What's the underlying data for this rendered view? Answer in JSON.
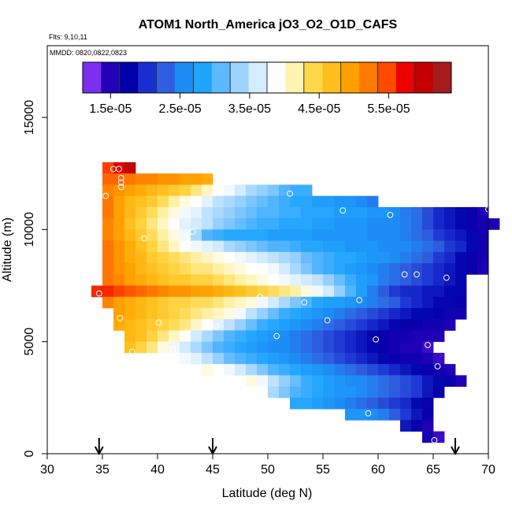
{
  "chart_data": {
    "type": "heatmap",
    "title": "ATOM1 North_America jO3_O2_O1D_CAFS",
    "flights_note": "Flts: 9,10,11",
    "dates_note": "MMDD: 0820,0822,0823",
    "xlabel": "Latitude (deg N)",
    "ylabel": "Altitude (m)",
    "xlim": [
      30,
      70
    ],
    "ylim": [
      0,
      18200
    ],
    "x_ticks": [
      "30",
      "35",
      "40",
      "45",
      "50",
      "55",
      "60",
      "65",
      "70"
    ],
    "y_ticks": [
      "0",
      "5000",
      "10000",
      "15000"
    ],
    "grid": false,
    "colorbar": {
      "placement": "top",
      "range": [
        1.1e-05,
        6.4e-05
      ],
      "tick_labels": [
        "1.5e-05",
        "2.5e-05",
        "3.5e-05",
        "4.5e-05",
        "5.5e-05"
      ],
      "colors": [
        "#7b2ff0",
        "#2200b8",
        "#0000a8",
        "#1a2ed0",
        "#2f5fe0",
        "#1e8cf5",
        "#1fa4ff",
        "#5cb8ff",
        "#9cd3ff",
        "#d4ecff",
        "#ffffff",
        "#fff3b0",
        "#ffd84a",
        "#ffbf1c",
        "#ffa000",
        "#ff7a00",
        "#ff4a00",
        "#ee0000",
        "#c40000",
        "#a61b1b"
      ]
    },
    "latitude_markers": [
      34.7,
      45,
      67
    ],
    "cell_width_deg": 1.0,
    "cell_height_m": 500,
    "rows": [
      {
        "alt": 12750,
        "lat_start": 35,
        "values": [
          5.6e-05,
          5.9e-05,
          6.2e-05
        ]
      },
      {
        "alt": 12250,
        "lat_start": 35,
        "values": [
          5.4e-05,
          5.4e-05,
          5.3e-05,
          5.2e-05,
          5.2e-05,
          5.1e-05,
          5.1e-05,
          5e-05,
          5e-05,
          4.9e-05
        ]
      },
      {
        "alt": 11750,
        "lat_start": 35,
        "values": [
          5.2e-05,
          5.1e-05,
          5e-05,
          4.9e-05,
          4.8e-05,
          4.7e-05,
          4.6e-05,
          4.5e-05,
          4.3e-05,
          4.1e-05,
          3.9e-05,
          3.8e-05,
          3.6e-05,
          3.4e-05,
          3.3e-05,
          3.2e-05,
          3e-05,
          2.9e-05,
          2.9e-05
        ]
      },
      {
        "alt": 11250,
        "lat_start": 35,
        "values": [
          5.3e-05,
          5e-05,
          4.8e-05,
          4.7e-05,
          4.6e-05,
          4.4e-05,
          4.2e-05,
          4e-05,
          3.9e-05,
          3.7e-05,
          3.5e-05,
          3.4e-05,
          3.3e-05,
          3.2e-05,
          3.1e-05,
          3e-05,
          2.9e-05,
          2.8e-05,
          2.8e-05,
          2.7e-05,
          2.7e-05,
          2.6e-05,
          2.6e-05,
          2.5e-05,
          2.4e-05
        ]
      },
      {
        "alt": 10750,
        "lat_start": 35,
        "values": [
          5.3e-05,
          5e-05,
          4.8e-05,
          4.6e-05,
          4.4e-05,
          4.2e-05,
          4e-05,
          3.8e-05,
          3.7e-05,
          3.5e-05,
          3.4e-05,
          3.3e-05,
          3.2e-05,
          3.1e-05,
          3e-05,
          3e-05,
          2.9e-05,
          2.9e-05,
          2.8e-05,
          2.8e-05,
          2.8e-05,
          2.7e-05,
          2.7e-05,
          2.7e-05,
          2.6e-05,
          2.6e-05,
          2.5e-05,
          2.4e-05,
          2.3e-05,
          2.1e-05,
          1.9e-05,
          1.8e-05,
          1.7e-05,
          1.6e-05,
          1.4e-05
        ]
      },
      {
        "alt": 10250,
        "lat_start": 35,
        "values": [
          5.2e-05,
          5e-05,
          4.7e-05,
          4.5e-05,
          4.3e-05,
          4.1e-05,
          3.9e-05,
          3.7e-05,
          3.6e-05,
          3.5e-05,
          3.3e-05,
          3.2e-05,
          3.1e-05,
          3e-05,
          2.9e-05,
          2.9e-05,
          2.8e-05,
          2.8e-05,
          2.8e-05,
          2.7e-05,
          2.7e-05,
          2.6e-05,
          2.6e-05,
          2.6e-05,
          2.5e-05,
          2.5e-05,
          2.5e-05,
          2.4e-05,
          2.3e-05,
          2.1e-05,
          1.9e-05,
          1.8e-05,
          1.7e-05,
          1.6e-05,
          1.5e-05,
          1.4e-05
        ]
      },
      {
        "alt": 9750,
        "lat_start": 35,
        "values": [
          5.2e-05,
          5e-05,
          4.8e-05,
          4.6e-05,
          4.4e-05,
          4.2e-05,
          4e-05,
          3.8e-05,
          3.4e-05,
          3e-05,
          2.9e-05,
          2.8e-05,
          2.8e-05,
          2.8e-05,
          2.8e-05,
          2.7e-05,
          2.7e-05,
          2.7e-05,
          2.7e-05,
          2.6e-05,
          2.6e-05,
          2.6e-05,
          2.6e-05,
          2.6e-05,
          2.5e-05,
          2.5e-05,
          2.5e-05,
          2.4e-05,
          2.3e-05,
          2.2e-05,
          2e-05,
          1.9e-05,
          1.8e-05,
          1.7e-05,
          1.5e-05
        ]
      },
      {
        "alt": 9250,
        "lat_start": 35,
        "values": [
          5.3e-05,
          5.1e-05,
          4.9e-05,
          4.7e-05,
          4.5e-05,
          4.3e-05,
          4.1e-05,
          3.9e-05,
          3.8e-05,
          3.7e-05,
          3.6e-05,
          3.4e-05,
          3.3e-05,
          3.2e-05,
          3.1e-05,
          3e-05,
          3e-05,
          2.9e-05,
          2.8e-05,
          2.8e-05,
          2.7e-05,
          2.7e-05,
          2.6e-05,
          2.6e-05,
          2.6e-05,
          2.5e-05,
          2.5e-05,
          2.5e-05,
          2.4e-05,
          2.3e-05,
          2.2e-05,
          2e-05,
          1.9e-05,
          1.7e-05,
          1.5e-05
        ]
      },
      {
        "alt": 8750,
        "lat_start": 35,
        "values": [
          5.3e-05,
          5.1e-05,
          4.9e-05,
          4.8e-05,
          4.6e-05,
          4.5e-05,
          4.4e-05,
          4.3e-05,
          4.2e-05,
          4.1e-05,
          4e-05,
          3.9e-05,
          3.8e-05,
          3.7e-05,
          3.6e-05,
          3.5e-05,
          3.4e-05,
          3.3e-05,
          3.1e-05,
          3e-05,
          2.9e-05,
          2.8e-05,
          2.8e-05,
          2.7e-05,
          2.6e-05,
          2.6e-05,
          2.5e-05,
          2.4e-05,
          2.3e-05,
          2.2e-05,
          2e-05,
          1.9e-05,
          1.7e-05,
          1.6e-05,
          1.5e-05
        ]
      },
      {
        "alt": 8250,
        "lat_start": 35,
        "values": [
          5.3e-05,
          5.1e-05,
          5e-05,
          4.8e-05,
          4.7e-05,
          4.6e-05,
          4.5e-05,
          4.4e-05,
          4.3e-05,
          4.3e-05,
          4.2e-05,
          4.1e-05,
          4e-05,
          3.9e-05,
          3.9e-05,
          3.8e-05,
          3.6e-05,
          3.4e-05,
          3.2e-05,
          3e-05,
          2.9e-05,
          2.8e-05,
          2.7e-05,
          2.6e-05,
          2.5e-05,
          2.4e-05,
          2.3e-05,
          2.2e-05,
          2.1e-05,
          2e-05,
          1.9e-05,
          1.8e-05,
          1.7e-05,
          1.6e-05,
          1.4e-05
        ]
      },
      {
        "alt": 7750,
        "lat_start": 35,
        "values": [
          5.3e-05,
          5.2e-05,
          5e-05,
          4.9e-05,
          4.8e-05,
          4.7e-05,
          4.6e-05,
          4.6e-05,
          4.5e-05,
          4.5e-05,
          4.4e-05,
          4.3e-05,
          4.2e-05,
          4.1e-05,
          4e-05,
          3.9e-05,
          3.8e-05,
          3.7e-05,
          3.6e-05,
          3.5e-05,
          3.3e-05,
          3.1e-05,
          2.9e-05,
          2.7e-05,
          2.6e-05,
          2.4e-05,
          2.3e-05,
          2.2e-05,
          2.1e-05,
          2e-05,
          1.9e-05,
          1.8e-05,
          1.7e-05
        ]
      },
      {
        "alt": 7250,
        "lat_start": 34,
        "values": [
          5.7e-05,
          5.7e-05,
          5.6e-05,
          5.5e-05,
          5.4e-05,
          5.3e-05,
          5.2e-05,
          5.1e-05,
          5.1e-05,
          5e-05,
          5e-05,
          4.9e-05,
          4.8e-05,
          4.7e-05,
          4.6e-05,
          4.5e-05,
          4.4e-05,
          4.3e-05,
          4.2e-05,
          4e-05,
          3.8e-05,
          3.6e-05,
          3.3e-05,
          3e-05,
          2.7e-05,
          2.4e-05,
          2.2e-05,
          2e-05,
          1.9e-05,
          1.9e-05,
          1.8e-05,
          1.8e-05,
          1.7e-05,
          1.7e-05
        ]
      },
      {
        "alt": 6750,
        "lat_start": 35,
        "values": [
          5.2e-05,
          5e-05,
          4.9e-05,
          4.8e-05,
          4.7e-05,
          4.6e-05,
          4.5e-05,
          4.5e-05,
          4.4e-05,
          4.4e-05,
          4.3e-05,
          4.2e-05,
          4.1e-05,
          4e-05,
          3.8e-05,
          3.6e-05,
          3.4e-05,
          3.2e-05,
          3e-05,
          2.8e-05,
          2.7e-05,
          2.7e-05,
          2.6e-05,
          2.5e-05,
          2.4e-05,
          2.3e-05,
          2.2e-05,
          2e-05,
          1.9e-05,
          1.8e-05,
          1.7e-05,
          1.7e-05,
          1.6e-05
        ]
      },
      {
        "alt": 6250,
        "lat_start": 36,
        "values": [
          5e-05,
          4.9e-05,
          4.8e-05,
          4.7e-05,
          4.6e-05,
          4.5e-05,
          4.4e-05,
          4.3e-05,
          4.2e-05,
          4.1e-05,
          4e-05,
          3.8e-05,
          3.5e-05,
          3.3e-05,
          3.1e-05,
          2.9e-05,
          2.8e-05,
          2.7e-05,
          2.6e-05,
          2.5e-05,
          2.4e-05,
          2.3e-05,
          2.2e-05,
          2.1e-05,
          2e-05,
          1.9e-05,
          1.8e-05,
          1.7e-05,
          1.7e-05,
          1.6e-05,
          1.5e-05,
          1.5e-05
        ]
      },
      {
        "alt": 5750,
        "lat_start": 36,
        "values": [
          4.9e-05,
          4.8e-05,
          4.7e-05,
          4.6e-05,
          4.5e-05,
          4.4e-05,
          4.3e-05,
          4.1e-05,
          3.9e-05,
          3.7e-05,
          3.5e-05,
          3.3e-05,
          3.1e-05,
          2.9e-05,
          2.8e-05,
          2.7e-05,
          2.6e-05,
          2.5e-05,
          2.4e-05,
          2.3e-05,
          2.2e-05,
          2.1e-05,
          2e-05,
          1.9e-05,
          1.8e-05,
          1.7e-05,
          1.6e-05,
          1.6e-05,
          1.5e-05,
          1.5e-05,
          1.4e-05
        ]
      },
      {
        "alt": 5250,
        "lat_start": 37,
        "values": [
          4.8e-05,
          4.7e-05,
          4.5e-05,
          4.3e-05,
          4.1e-05,
          3.9e-05,
          3.6e-05,
          3.4e-05,
          3.2e-05,
          3e-05,
          2.9e-05,
          2.8e-05,
          2.7e-05,
          2.6e-05,
          2.5e-05,
          2.4e-05,
          2.3e-05,
          2.2e-05,
          2.1e-05,
          2e-05,
          1.9e-05,
          1.8e-05,
          1.7e-05,
          1.6e-05,
          1.5e-05,
          1.5e-05,
          1.4e-05,
          1.4e-05,
          1.4e-05
        ]
      },
      {
        "alt": 4750,
        "lat_start": 37,
        "values": [
          4.7e-05,
          4.5e-05,
          4.3e-05,
          4e-05,
          3.8e-05,
          3.6e-05,
          3.4e-05,
          3.2e-05,
          3e-05,
          2.9e-05,
          2.8e-05,
          2.7e-05,
          2.6e-05,
          2.5e-05,
          2.5e-05,
          2.4e-05,
          2.3e-05,
          2.2e-05,
          2.1e-05,
          2e-05,
          1.9e-05,
          1.8e-05,
          1.7e-05,
          1.6e-05,
          1.5e-05,
          1.4e-05,
          1.4e-05,
          1.3e-05
        ]
      },
      {
        "alt": 4250,
        "lat_start": 41,
        "values": [
          3.9e-05,
          3.8e-05,
          3.7e-05,
          3.5e-05,
          3.3e-05,
          3.1e-05,
          3e-05,
          2.9e-05,
          2.8e-05,
          2.7e-05,
          2.6e-05,
          2.5e-05,
          2.4e-05,
          2.3e-05,
          2.2e-05,
          2.1e-05,
          2e-05,
          1.9e-05,
          1.8e-05,
          1.7e-05,
          1.6e-05,
          1.5e-05,
          1.5e-05,
          1.4e-05,
          1.3e-05
        ]
      },
      {
        "alt": 3750,
        "lat_start": 44,
        "values": [
          4e-05,
          3.9e-05,
          3.8e-05,
          3.6e-05,
          3.4e-05,
          3.2e-05,
          3e-05,
          2.9e-05,
          2.8e-05,
          2.7e-05,
          2.6e-05,
          2.5e-05,
          2.4e-05,
          2.3e-05,
          2.2e-05,
          2.1e-05,
          2e-05,
          1.9e-05,
          1.8e-05,
          1.7e-05,
          1.6e-05,
          1.5e-05,
          1.4e-05
        ]
      },
      {
        "alt": 3250,
        "lat_start": 48,
        "values": [
          4e-05,
          3.8e-05,
          3.5e-05,
          3.3e-05,
          3.1e-05,
          2.9e-05,
          2.8e-05,
          2.7e-05,
          2.6e-05,
          2.5e-05,
          2.5e-05,
          2.4e-05,
          2.3e-05,
          2.2e-05,
          2.1e-05,
          2e-05,
          1.8e-05,
          1.7e-05,
          1.6e-05,
          1.4e-05
        ]
      },
      {
        "alt": 2750,
        "lat_start": 50,
        "values": [
          3.4e-05,
          3.2e-05,
          3e-05,
          2.9e-05,
          2.8e-05,
          2.7e-05,
          2.6e-05,
          2.6e-05,
          2.5e-05,
          2.4e-05,
          2.3e-05,
          2.2e-05,
          2.1e-05,
          2e-05,
          1.8e-05,
          1.6e-05
        ]
      },
      {
        "alt": 2250,
        "lat_start": 52,
        "values": [
          2.8e-05,
          2.8e-05,
          2.7e-05,
          2.6e-05,
          2.5e-05,
          2.4e-05,
          2.3e-05,
          2.2e-05,
          2.1e-05,
          2e-05,
          1.9e-05,
          1.7e-05,
          1.6e-05
        ]
      },
      {
        "alt": 1750,
        "lat_start": 57,
        "values": [
          2.6e-05,
          2.6e-05,
          2.5e-05,
          2.4e-05,
          2.2e-05,
          2e-05,
          1.8e-05,
          1.6e-05
        ]
      },
      {
        "alt": 1250,
        "lat_start": 62,
        "values": [
          1.8e-05,
          1.6e-05,
          1.4e-05
        ]
      },
      {
        "alt": 750,
        "lat_start": 64,
        "values": [
          1.5e-05,
          1.3e-05
        ]
      }
    ],
    "observations": [
      {
        "lat": 36.0,
        "alt": 12700
      },
      {
        "lat": 36.5,
        "alt": 12700
      },
      {
        "lat": 36.7,
        "alt": 12300
      },
      {
        "lat": 36.7,
        "alt": 12100
      },
      {
        "lat": 36.7,
        "alt": 11900
      },
      {
        "lat": 35.3,
        "alt": 11500
      },
      {
        "lat": 52.0,
        "alt": 11600
      },
      {
        "lat": 56.8,
        "alt": 10850
      },
      {
        "lat": 61.1,
        "alt": 10650
      },
      {
        "lat": 70.0,
        "alt": 10900
      },
      {
        "lat": 43.2,
        "alt": 9900
      },
      {
        "lat": 38.8,
        "alt": 9600
      },
      {
        "lat": 62.4,
        "alt": 8000
      },
      {
        "lat": 63.5,
        "alt": 8000
      },
      {
        "lat": 66.2,
        "alt": 7850
      },
      {
        "lat": 34.7,
        "alt": 7150
      },
      {
        "lat": 49.3,
        "alt": 7000
      },
      {
        "lat": 58.3,
        "alt": 6850
      },
      {
        "lat": 53.3,
        "alt": 6750
      },
      {
        "lat": 36.6,
        "alt": 6050
      },
      {
        "lat": 40.1,
        "alt": 5850
      },
      {
        "lat": 55.4,
        "alt": 5950
      },
      {
        "lat": 45.3,
        "alt": 5700
      },
      {
        "lat": 50.8,
        "alt": 5250
      },
      {
        "lat": 59.8,
        "alt": 5100
      },
      {
        "lat": 64.5,
        "alt": 4850
      },
      {
        "lat": 41.4,
        "alt": 4650
      },
      {
        "lat": 37.7,
        "alt": 4550
      },
      {
        "lat": 65.4,
        "alt": 3900
      },
      {
        "lat": 59.1,
        "alt": 1800
      },
      {
        "lat": 65.1,
        "alt": 600
      }
    ]
  }
}
